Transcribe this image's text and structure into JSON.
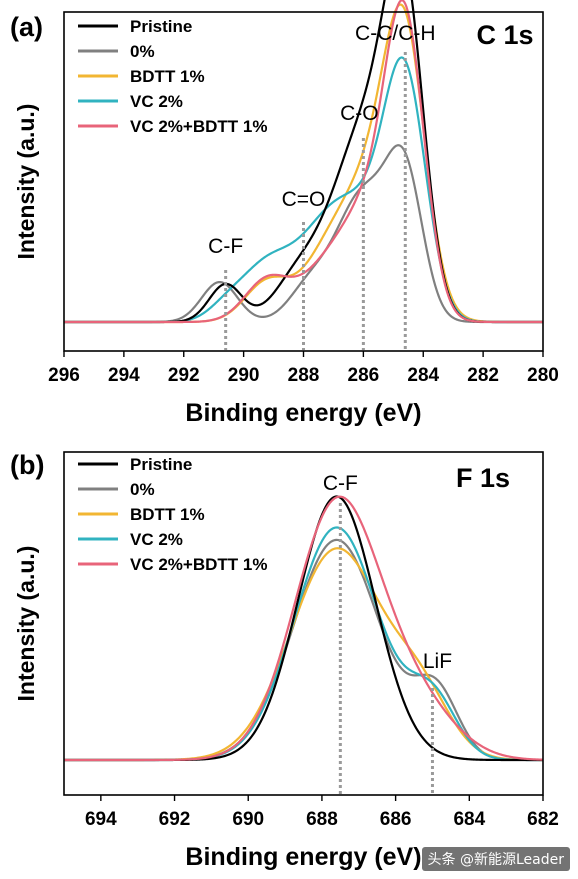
{
  "watermark": "头条 @新能源Leader",
  "colors": {
    "Pristine": "#000000",
    "0%": "#808080",
    "BDTT 1%": "#f2b632",
    "VC 2%": "#30b3c0",
    "VC 2%+BDTT 1%": "#e8647a",
    "refline": "#9a9a9a"
  },
  "chart_data": [
    {
      "type": "line",
      "panel_label": "(a)",
      "title": "C 1s",
      "xlabel": "Binding energy (eV)",
      "ylabel": "Intensity (a.u.)",
      "xlim": [
        296,
        280
      ],
      "x_reversed": true,
      "ylim": [
        0,
        1
      ],
      "xticks": [
        296,
        294,
        292,
        290,
        288,
        286,
        284,
        282,
        280
      ],
      "legend": [
        "Pristine",
        "0%",
        "BDTT 1%",
        "VC 2%",
        "VC 2%+BDTT 1%"
      ],
      "legend_position": "top-left",
      "annotations": [
        {
          "text": "C-F",
          "x": 290.6
        },
        {
          "text": "C=O",
          "x": 288.0
        },
        {
          "text": "C-O",
          "x": 286.0
        },
        {
          "text": "C-C/C-H",
          "x": 284.6
        }
      ],
      "reference_lines": [
        290.6,
        288.0,
        286.0,
        284.6
      ],
      "series": [
        {
          "name": "Pristine",
          "peaks": [
            {
              "center": 284.6,
              "height": 0.57,
              "width": 0.65
            },
            {
              "center": 285.5,
              "height": 0.3,
              "width": 0.9
            },
            {
              "center": 286.6,
              "height": 0.2,
              "width": 0.9
            },
            {
              "center": 288.2,
              "height": 0.09,
              "width": 0.8
            },
            {
              "center": 290.6,
              "height": 0.08,
              "width": 0.55
            }
          ]
        },
        {
          "name": "0%",
          "peaks": [
            {
              "center": 284.6,
              "height": 0.28,
              "width": 0.6
            },
            {
              "center": 286.0,
              "height": 0.27,
              "width": 0.9
            },
            {
              "center": 287.8,
              "height": 0.07,
              "width": 0.7
            },
            {
              "center": 290.8,
              "height": 0.085,
              "width": 0.6
            }
          ]
        },
        {
          "name": "BDTT 1%",
          "peaks": [
            {
              "center": 284.6,
              "height": 0.48,
              "width": 0.68
            },
            {
              "center": 285.7,
              "height": 0.3,
              "width": 1.1
            },
            {
              "center": 287.4,
              "height": 0.08,
              "width": 0.8
            },
            {
              "center": 289.2,
              "height": 0.085,
              "width": 0.75
            }
          ]
        },
        {
          "name": "VC 2%",
          "peaks": [
            {
              "center": 284.6,
              "height": 0.48,
              "width": 0.7
            },
            {
              "center": 286.0,
              "height": 0.2,
              "width": 1.0
            },
            {
              "center": 287.4,
              "height": 0.14,
              "width": 0.9
            },
            {
              "center": 289.2,
              "height": 0.12,
              "width": 0.9
            },
            {
              "center": 290.6,
              "height": 0.025,
              "width": 0.6
            }
          ]
        },
        {
          "name": "VC 2%+BDTT 1%",
          "peaks": [
            {
              "center": 284.6,
              "height": 0.56,
              "width": 0.65
            },
            {
              "center": 285.8,
              "height": 0.24,
              "width": 1.0
            },
            {
              "center": 287.5,
              "height": 0.07,
              "width": 0.8
            },
            {
              "center": 289.2,
              "height": 0.09,
              "width": 0.75
            }
          ]
        }
      ]
    },
    {
      "type": "line",
      "panel_label": "(b)",
      "title": "F 1s",
      "xlabel": "Binding energy (eV)",
      "ylabel": "Intensity (a.u.)",
      "xlim": [
        695,
        682
      ],
      "x_reversed": true,
      "ylim": [
        0,
        1
      ],
      "xticks": [
        694,
        692,
        690,
        688,
        686,
        684,
        682
      ],
      "legend": [
        "Pristine",
        "0%",
        "BDTT 1%",
        "VC 2%",
        "VC 2%+BDTT 1%"
      ],
      "legend_position": "top-left",
      "annotations": [
        {
          "text": "C-F",
          "x": 687.5
        },
        {
          "text": "LiF",
          "x": 685.0
        }
      ],
      "reference_lines": [
        687.5,
        685.0
      ],
      "series": [
        {
          "name": "Pristine",
          "peaks": [
            {
              "center": 687.6,
              "height": 0.85,
              "width": 1.05
            }
          ]
        },
        {
          "name": "0%",
          "peaks": [
            {
              "center": 687.6,
              "height": 0.71,
              "width": 1.18
            },
            {
              "center": 684.9,
              "height": 0.21,
              "width": 0.6
            }
          ]
        },
        {
          "name": "BDTT 1%",
          "peaks": [
            {
              "center": 687.6,
              "height": 0.68,
              "width": 1.25
            },
            {
              "center": 685.3,
              "height": 0.18,
              "width": 0.8
            }
          ]
        },
        {
          "name": "VC 2%",
          "peaks": [
            {
              "center": 687.6,
              "height": 0.75,
              "width": 1.15
            },
            {
              "center": 685.0,
              "height": 0.19,
              "width": 0.65
            }
          ]
        },
        {
          "name": "VC 2%+BDTT 1%",
          "peaks": [
            {
              "center": 687.6,
              "height": 0.82,
              "width": 1.15
            },
            {
              "center": 685.5,
              "height": 0.17,
              "width": 1.1
            }
          ]
        }
      ]
    }
  ]
}
